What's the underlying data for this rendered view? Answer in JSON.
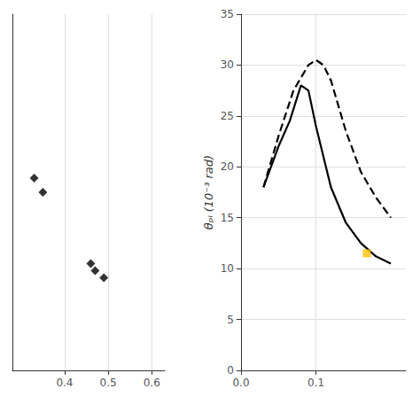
{
  "chart_data": [
    {
      "type": "scatter",
      "x": [
        0.33,
        0.35,
        0.46,
        0.47,
        0.49
      ],
      "values": [
        0.62,
        0.6,
        0.5,
        0.49,
        0.48
      ],
      "xlim": [
        0.28,
        0.63
      ],
      "xticks": [
        0.4,
        0.5,
        0.6
      ],
      "ylim": [
        0.35,
        0.85
      ],
      "yticks": [],
      "tick_labels": "x",
      "marker": "diamond",
      "color": "black",
      "grid": true
    },
    {
      "type": "line",
      "ylabel": "θₚₗ (10⁻³ rad)",
      "series": [
        {
          "type": "line",
          "color": "black",
          "line_style": "solid",
          "x": [
            0.03,
            0.05,
            0.065,
            0.08,
            0.09,
            0.1,
            0.12,
            0.14,
            0.16,
            0.18,
            0.2
          ],
          "values": [
            18.0,
            22.0,
            24.5,
            28.0,
            27.5,
            24.0,
            18.0,
            14.5,
            12.5,
            11.2,
            10.5
          ]
        },
        {
          "type": "line",
          "color": "black",
          "line_style": "dashed",
          "x": [
            0.03,
            0.05,
            0.07,
            0.09,
            0.1,
            0.11,
            0.12,
            0.14,
            0.16,
            0.18,
            0.2
          ],
          "values": [
            18.0,
            23.0,
            27.5,
            30.0,
            30.5,
            30.0,
            28.5,
            23.5,
            19.5,
            17.0,
            15.0
          ]
        },
        {
          "type": "scatter",
          "color": "#FFC000",
          "marker": "square",
          "x": [
            0.168
          ],
          "values": [
            11.5
          ]
        }
      ],
      "xlim": [
        0.0,
        0.22
      ],
      "xticks": [
        {
          "value": 0,
          "label": "0.0"
        },
        0.1
      ],
      "ylim": [
        0,
        35
      ],
      "yticks": [
        0,
        5,
        10,
        15,
        20,
        25,
        30,
        35
      ],
      "grid": true
    }
  ]
}
